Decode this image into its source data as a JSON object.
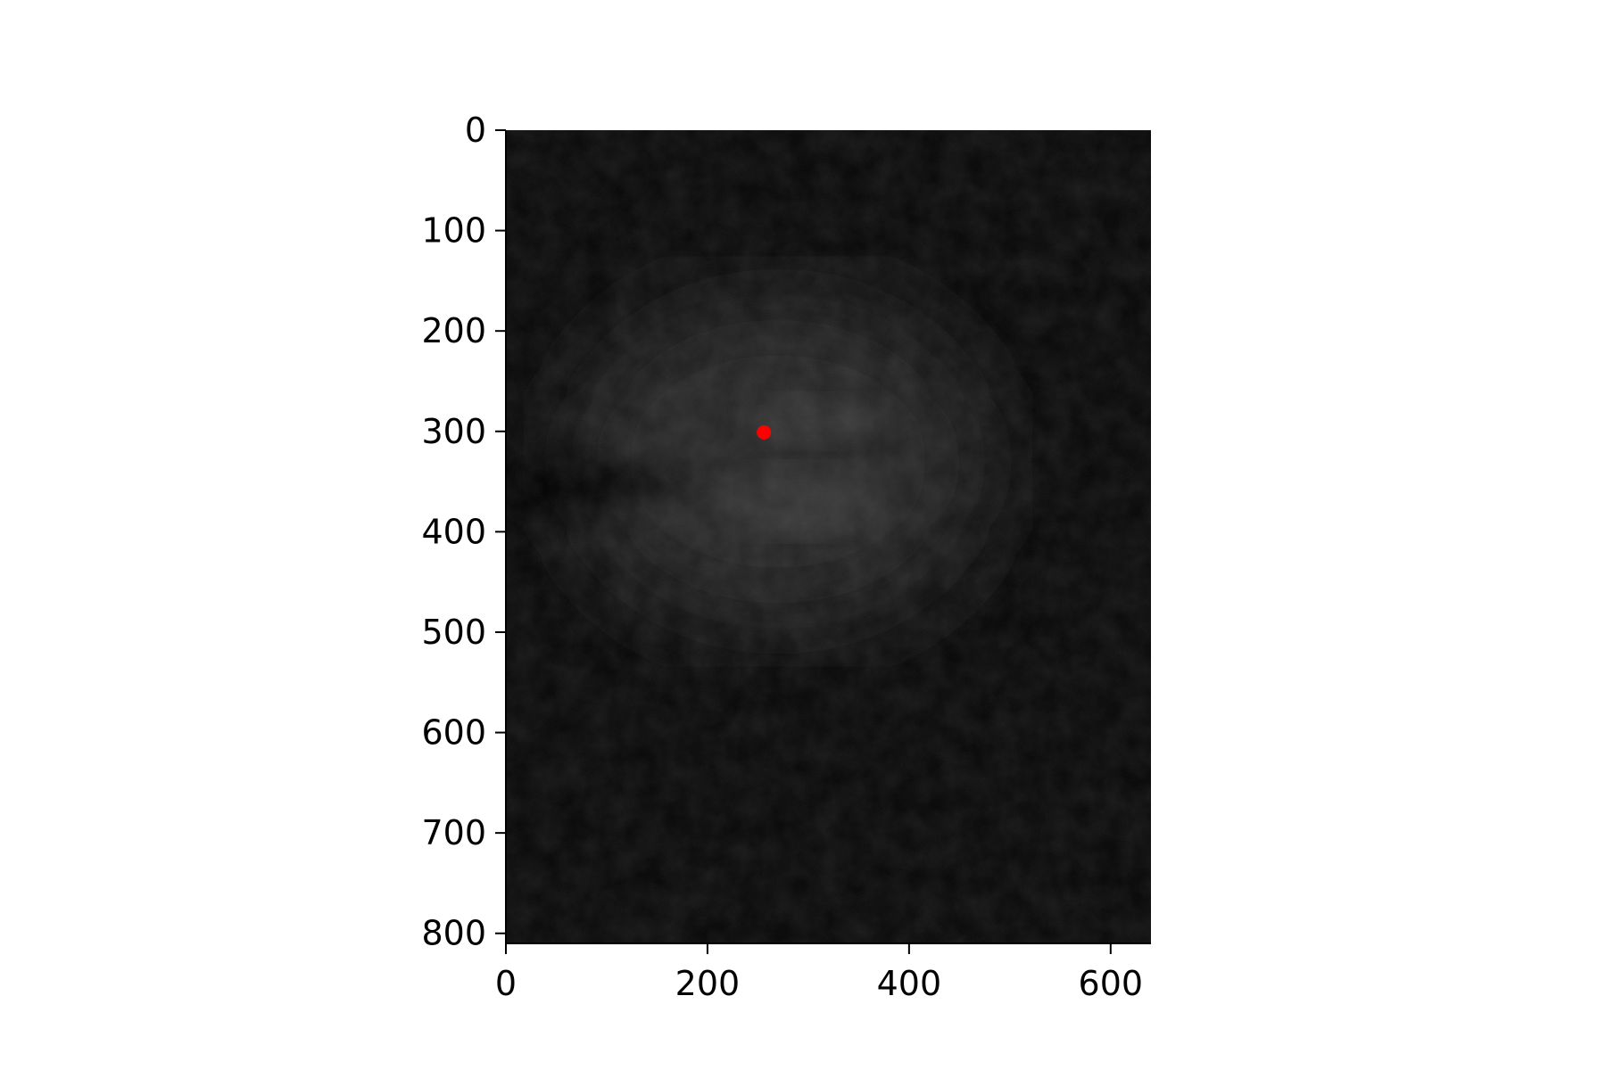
{
  "chart_data": {
    "type": "heatmap",
    "title": "",
    "xlabel": "",
    "ylabel": "",
    "xlim": [
      0,
      640
    ],
    "ylim": [
      810,
      0
    ],
    "x_ticks": [
      0,
      200,
      400,
      600
    ],
    "y_ticks": [
      0,
      100,
      200,
      300,
      400,
      500,
      600,
      700,
      800
    ],
    "x_tick_labels": [
      "0",
      "200",
      "400",
      "600"
    ],
    "y_tick_labels": [
      "0",
      "100",
      "200",
      "300",
      "400",
      "500",
      "600",
      "700",
      "800"
    ],
    "image": {
      "colormap": "gray",
      "background_color": "#050505",
      "description_regions": [
        {
          "kind": "bright-lobe",
          "center": [
            300,
            290
          ],
          "extent": [
            60,
            25
          ],
          "intensity": 0.55
        },
        {
          "kind": "bright-lobe",
          "center": [
            290,
            370
          ],
          "extent": [
            80,
            35
          ],
          "intensity": 0.6
        },
        {
          "kind": "dim-halo",
          "center": [
            270,
            330
          ],
          "extent": [
            210,
            170
          ],
          "intensity": 0.15
        },
        {
          "kind": "dark-wedge",
          "points": [
            [
              0,
              320
            ],
            [
              0,
              395
            ],
            [
              195,
              345
            ]
          ],
          "intensity": 0.0
        }
      ]
    },
    "series": [
      {
        "type": "scatter",
        "points": [
          {
            "x": 256,
            "y": 301
          }
        ],
        "color": "#ff0000"
      }
    ],
    "grid": false
  }
}
